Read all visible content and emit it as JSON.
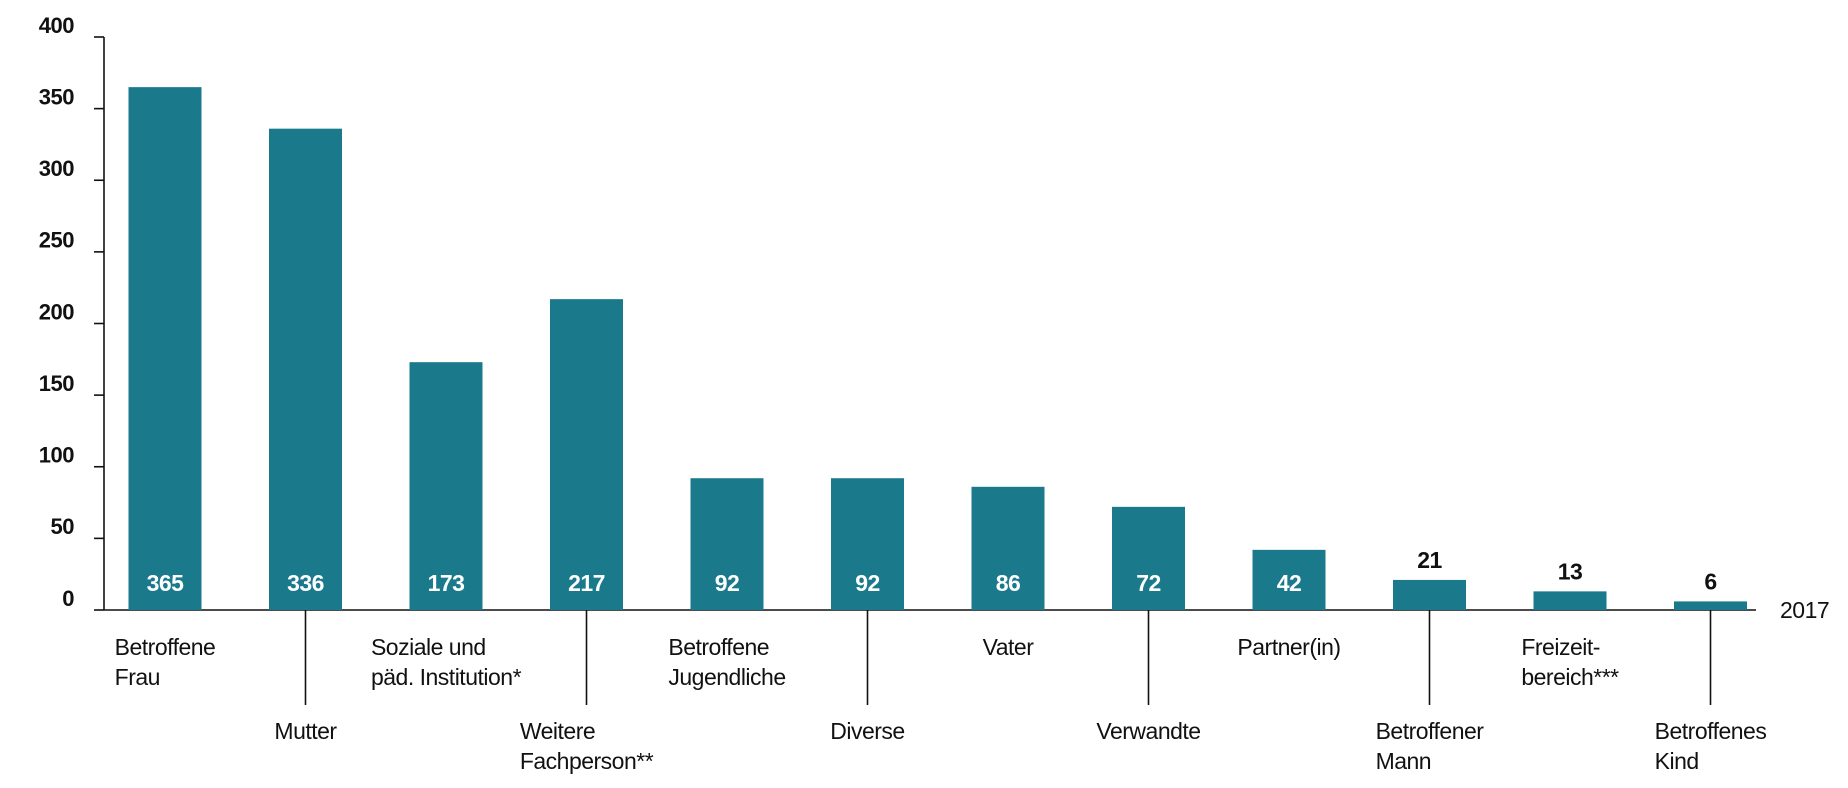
{
  "chart_data": {
    "type": "bar",
    "categories": [
      [
        "Betroffene",
        "Frau"
      ],
      [
        "Mutter"
      ],
      [
        "Soziale und",
        "päd. Institution*"
      ],
      [
        "Weitere",
        "Fachperson**"
      ],
      [
        "Betroffene",
        "Jugendliche"
      ],
      [
        "Diverse"
      ],
      [
        "Vater"
      ],
      [
        "Verwandte"
      ],
      [
        "Partner(in)"
      ],
      [
        "Betroffener",
        "Mann"
      ],
      [
        "Freizeit-",
        "bereich***"
      ],
      [
        "Betroffenes",
        "Kind"
      ]
    ],
    "values": [
      365,
      336,
      173,
      217,
      92,
      92,
      86,
      72,
      42,
      21,
      13,
      6
    ],
    "color": "#1a7a8c",
    "x_label": "2017",
    "ylim": [
      0,
      400
    ],
    "yticks": [
      0,
      50,
      100,
      150,
      200,
      250,
      300,
      350,
      400
    ],
    "grid": false
  }
}
